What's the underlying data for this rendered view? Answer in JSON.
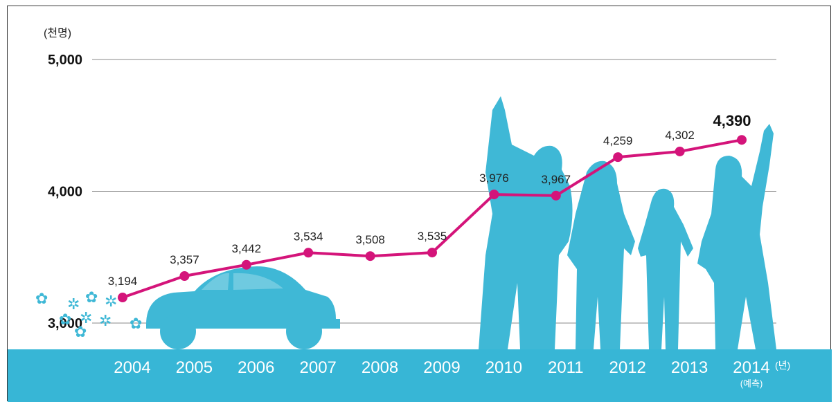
{
  "chart_data": {
    "type": "line",
    "unit_label": "(천명)",
    "x_unit_label": "(년)",
    "categories": [
      "2004",
      "2005",
      "2006",
      "2007",
      "2008",
      "2009",
      "2010",
      "2011",
      "2012",
      "2013",
      "2014"
    ],
    "category_notes": {
      "10": "(예측)"
    },
    "values": [
      3194,
      3357,
      3442,
      3534,
      3508,
      3535,
      3976,
      3967,
      4259,
      4302,
      4390
    ],
    "data_labels": [
      "3,194",
      "3,357",
      "3,442",
      "3,534",
      "3,508",
      "3,535",
      "3,976",
      "3,967",
      "4,259",
      "4,302",
      "4,390"
    ],
    "highlight_index": 10,
    "y_ticks": [
      3000,
      4000,
      5000
    ],
    "y_tick_labels": [
      "3,000",
      "4,000",
      "5,000"
    ],
    "ylim": [
      3000,
      5000
    ],
    "grid": true,
    "colors": {
      "line": "#d4147a",
      "band": "#37b6d6",
      "silhouette": "#3fb8d6",
      "grid": "#888888"
    }
  }
}
